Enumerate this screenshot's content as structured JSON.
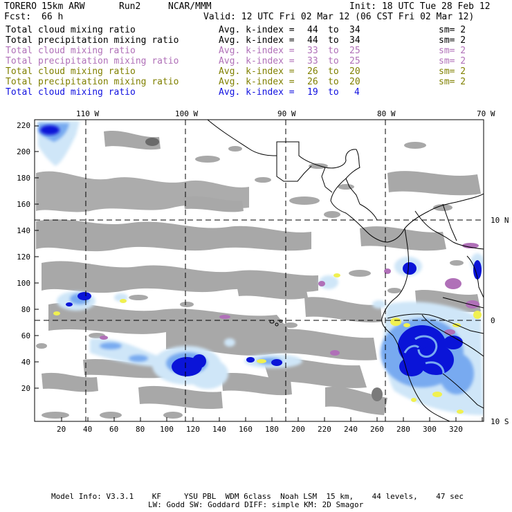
{
  "header": {
    "model": "TORERO",
    "resolution": "15km ARW",
    "run": "Run2",
    "org": "NCAR/MMM",
    "init": "Init: 18 UTC Tue 28 Feb 12",
    "fcst_label": "Fcst:",
    "fcst_value": "66 h",
    "valid": "Valid: 12 UTC Fri 02 Mar 12 (06 CST Fri 02 Mar 12)"
  },
  "legend_rows": [
    {
      "field": "Total cloud mixing ratio",
      "kidx": "Avg. k-index =",
      "from": "44",
      "to_word": "to",
      "to": "34",
      "sm": "sm= 2",
      "color": "#000000"
    },
    {
      "field": "Total precipitation mixing ratio",
      "kidx": "Avg. k-index =",
      "from": "44",
      "to_word": "to",
      "to": "34",
      "sm": "sm= 2",
      "color": "#000000"
    },
    {
      "field": "Total cloud mixing ratio",
      "kidx": "Avg. k-index =",
      "from": "33",
      "to_word": "to",
      "to": "25",
      "sm": "sm= 2",
      "color": "#b070b8"
    },
    {
      "field": "Total precipitation mixing ratio",
      "kidx": "Avg. k-index =",
      "from": "33",
      "to_word": "to",
      "to": "25",
      "sm": "sm= 2",
      "color": "#b070b8"
    },
    {
      "field": "Total cloud mixing ratio",
      "kidx": "Avg. k-index =",
      "from": "26",
      "to_word": "to",
      "to": "20",
      "sm": "sm= 2",
      "color": "#808000"
    },
    {
      "field": "Total precipitation mixing ratio",
      "kidx": "Avg. k-index =",
      "from": "26",
      "to_word": "to",
      "to": "20",
      "sm": "sm= 2",
      "color": "#808000"
    },
    {
      "field": "Total cloud mixing ratio",
      "kidx": "Avg. k-index =",
      "from": "19",
      "to_word": "to",
      "to": "4",
      "sm": "",
      "color": "#1010e0"
    }
  ],
  "top_lon_labels": [
    "110 W",
    "100 W",
    "90 W",
    "80 W",
    "70 W"
  ],
  "right_lat_labels": [
    "10 N",
    "0",
    "10 S"
  ],
  "y_ticks": [
    "220",
    "200",
    "180",
    "160",
    "140",
    "120",
    "100",
    "80",
    "60",
    "40",
    "20"
  ],
  "x_ticks": [
    "20",
    "40",
    "60",
    "80",
    "100",
    "120",
    "140",
    "160",
    "180",
    "200",
    "220",
    "240",
    "260",
    "280",
    "300",
    "320"
  ],
  "footer": {
    "line1": "Model Info: V3.3.1    KF     YSU PBL  WDM 6class  Noah LSM  15 km,    44 levels,    47 sec",
    "line2": "LW: Godd SW: Goddard DIFF: simple KM: 2D Smagor"
  },
  "colors": {
    "cloud_gray": "#a8a8a8",
    "light_blue": "#cfe6f8",
    "mid_blue": "#78aaf0",
    "deep_blue": "#0a14d8",
    "purple": "#b070b8",
    "yellow": "#f0f050"
  }
}
